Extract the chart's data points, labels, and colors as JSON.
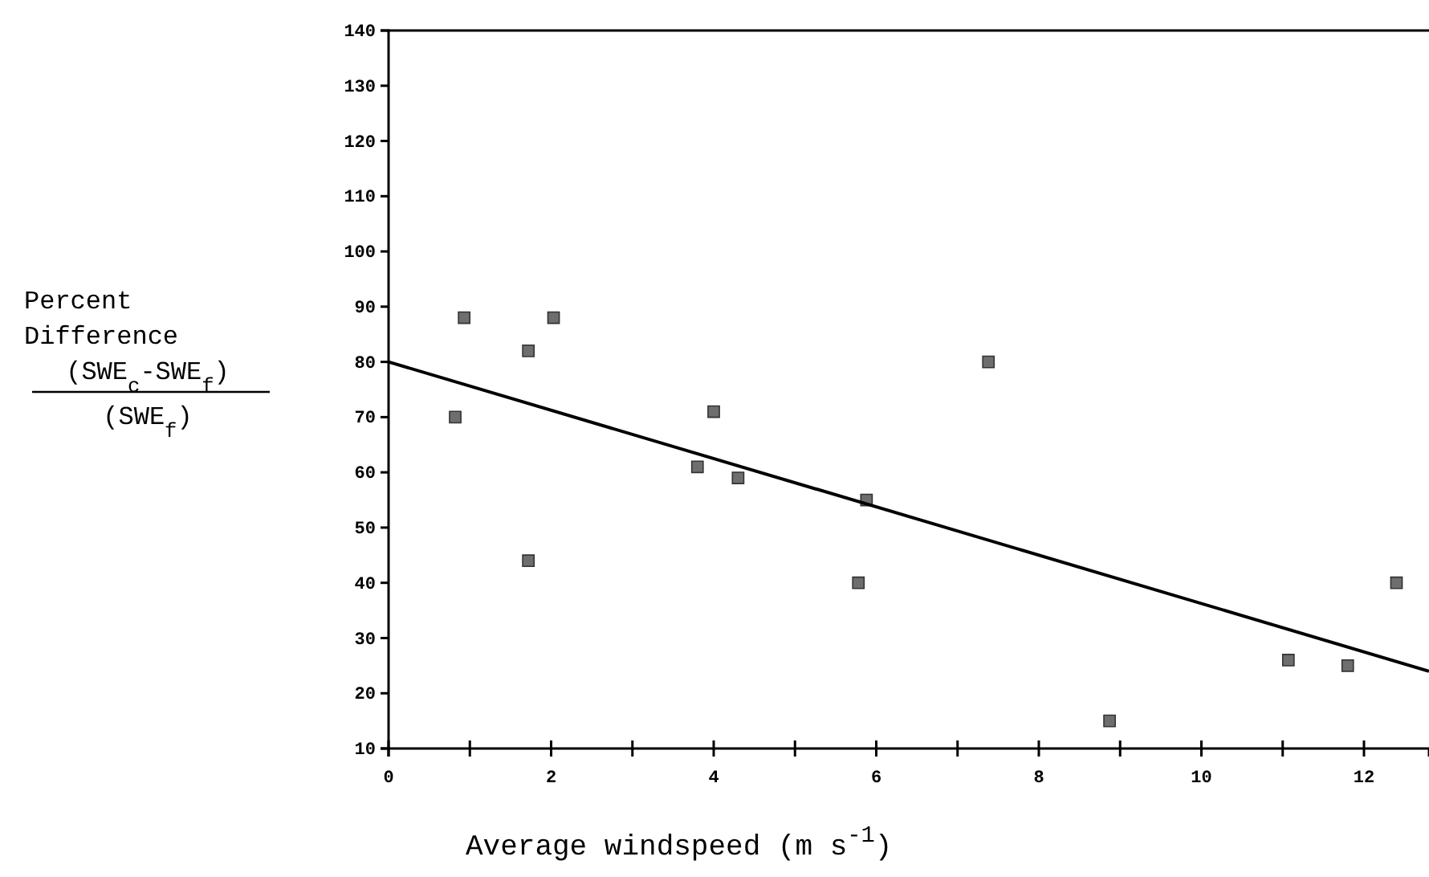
{
  "chart_data": {
    "type": "scatter",
    "xlabel": "Average windspeed (m s$^{-1}$)",
    "ylabel": "Percent\nDifference\n(SWE$_{c}$-SWE$_{f}$)\n(SWE$_{f}$)",
    "xlim": [
      0,
      12.8
    ],
    "ylim": [
      10,
      140
    ],
    "xticks": [
      0,
      {
        "value": 1,
        "label": null
      },
      2,
      {
        "value": 3,
        "label": null
      },
      4,
      {
        "value": 5,
        "label": null
      },
      6,
      {
        "value": 7,
        "label": null
      },
      8,
      {
        "value": 9,
        "label": null
      },
      10,
      {
        "value": 11,
        "label": null
      },
      12
    ],
    "yticks": [
      10,
      20,
      30,
      40,
      50,
      60,
      70,
      80,
      90,
      100,
      110,
      120,
      130,
      140
    ],
    "grid": false,
    "series": [
      {
        "marker": "square",
        "color": "#6e6e6e",
        "x": [
          0.82,
          0.93,
          1.72,
          2.03,
          1.72,
          3.8,
          4.0,
          4.3,
          5.78,
          5.88,
          7.38,
          8.87,
          11.07,
          11.8,
          12.4
        ],
        "values": [
          70,
          88,
          82,
          88,
          44,
          61,
          71,
          59,
          40,
          55,
          80,
          15,
          26,
          25,
          40
        ]
      },
      {
        "type": "line",
        "color": "#000000",
        "x": [
          0,
          12.8
        ],
        "values": [
          80,
          24
        ]
      }
    ]
  }
}
